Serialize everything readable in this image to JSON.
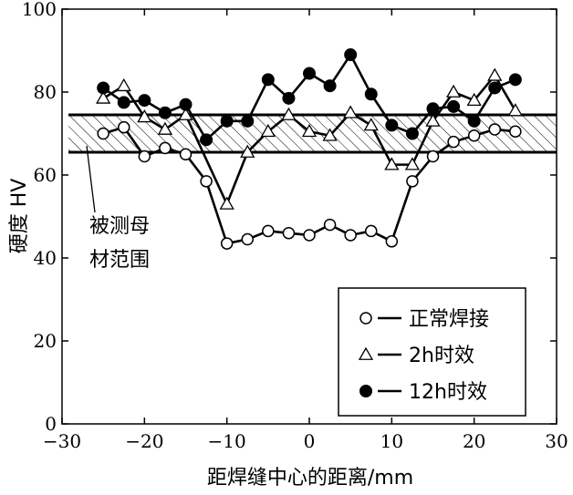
{
  "chart_data": {
    "type": "line",
    "title": "",
    "xlabel": "距焊缝中心的距离/mm",
    "ylabel": "硬度 HV",
    "xlim": [
      -30,
      30
    ],
    "ylim": [
      0,
      100
    ],
    "xticks": [
      -30,
      -20,
      -10,
      0,
      10,
      20,
      30
    ],
    "yticks": [
      0,
      20,
      40,
      60,
      80,
      100
    ],
    "xtick_labels": [
      "−30",
      "−20",
      "−10",
      "0",
      "10",
      "20",
      "30"
    ],
    "ytick_labels": [
      "0",
      "20",
      "40",
      "60",
      "80",
      "100"
    ],
    "grid": false,
    "legend_position": "bottom-right",
    "base_metal_band": {
      "label": "被测母材范围",
      "low": 65.5,
      "high": 74.5
    },
    "series": [
      {
        "name": "正常焊接",
        "marker": "open-circle",
        "x": [
          -25,
          -22.5,
          -20,
          -17.5,
          -15,
          -12.5,
          -10,
          -7.5,
          -5,
          -2.5,
          0,
          2.5,
          5,
          7.5,
          10,
          12.5,
          15,
          17.5,
          20,
          22.5,
          25
        ],
        "y": [
          70,
          71.5,
          64.5,
          66.5,
          65,
          58.5,
          43.5,
          44.5,
          46.5,
          46,
          45.5,
          48,
          45.5,
          46.5,
          44,
          58.5,
          64.5,
          68,
          69.5,
          71,
          70.5
        ]
      },
      {
        "name": "2h时效",
        "marker": "open-triangle",
        "x": [
          -25,
          -22.5,
          -20,
          -17.5,
          -15,
          -10,
          -7.5,
          -5,
          -2.5,
          0,
          2.5,
          5,
          7.5,
          10,
          12.5,
          15,
          17.5,
          20,
          22.5,
          25
        ],
        "y": [
          78.5,
          81.5,
          74,
          71,
          74.5,
          53,
          65.5,
          70.5,
          74.5,
          70.5,
          69.5,
          75,
          72,
          62.5,
          62.5,
          73,
          80,
          78,
          84,
          75.5
        ]
      },
      {
        "name": "12h时效",
        "marker": "filled-circle",
        "x": [
          -25,
          -22.5,
          -20,
          -17.5,
          -15,
          -12.5,
          -10,
          -7.5,
          -5,
          -2.5,
          0,
          2.5,
          5,
          7.5,
          10,
          12.5,
          15,
          17.5,
          20,
          22.5,
          25
        ],
        "y": [
          81,
          77.5,
          78,
          75,
          77,
          68.5,
          73,
          73,
          83,
          78.5,
          84.5,
          81.5,
          89,
          79.5,
          72,
          70,
          76,
          76.5,
          73,
          81,
          83
        ]
      }
    ]
  }
}
